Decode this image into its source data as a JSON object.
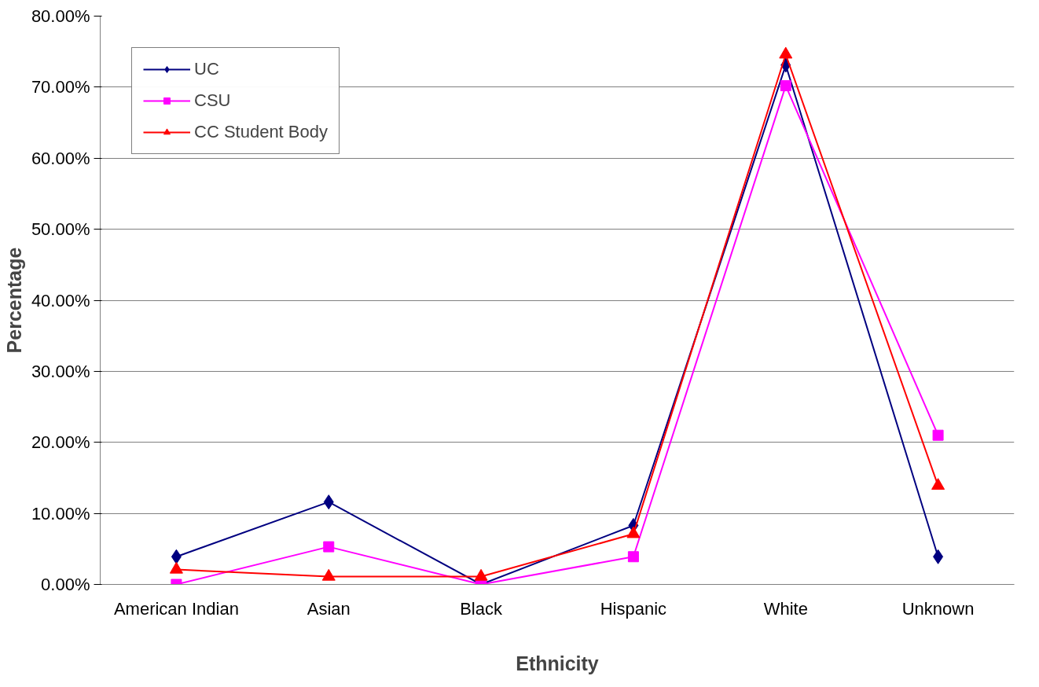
{
  "chart_data": {
    "type": "line",
    "xlabel": "Ethnicity",
    "ylabel": "Percentage",
    "categories": [
      "American Indian",
      "Asian",
      "Black",
      "Hispanic",
      "White",
      "Unknown"
    ],
    "series": [
      {
        "name": "UC",
        "color": "#000080",
        "marker": "diamond",
        "values": [
          3.9,
          11.6,
          0,
          8.3,
          73.1,
          3.9
        ]
      },
      {
        "name": "CSU",
        "color": "#ff00ff",
        "marker": "square",
        "values": [
          0,
          5.3,
          0,
          3.9,
          70.2,
          21.0
        ]
      },
      {
        "name": "CC Student Body",
        "color": "#ff0000",
        "marker": "triangle",
        "values": [
          2.1,
          1.1,
          1.1,
          7.1,
          74.6,
          13.9
        ]
      }
    ],
    "ylim": [
      0,
      80
    ],
    "yticks": [
      {
        "value": 0,
        "label": "0.00%"
      },
      {
        "value": 10,
        "label": "10.00%"
      },
      {
        "value": 20,
        "label": "20.00%"
      },
      {
        "value": 30,
        "label": "30.00%"
      },
      {
        "value": 40,
        "label": "40.00%"
      },
      {
        "value": 50,
        "label": "50.00%"
      },
      {
        "value": 60,
        "label": "60.00%"
      },
      {
        "value": 70,
        "label": "70.00%"
      },
      {
        "value": 80,
        "label": "80.00%"
      }
    ],
    "grid": "y",
    "legend": "top left",
    "line_style": "solid"
  }
}
